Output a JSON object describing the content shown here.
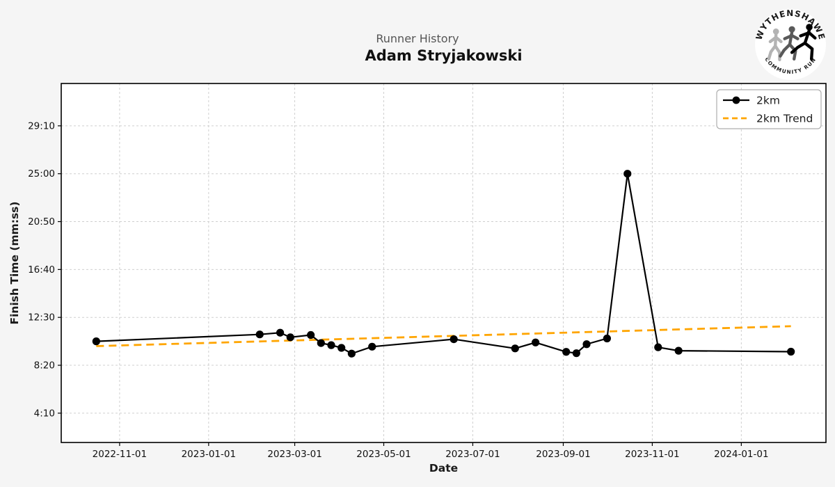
{
  "page": {
    "figure_bg": "#f5f5f5"
  },
  "header": {
    "suptitle": "Runner History",
    "title": "Adam Stryjakowski"
  },
  "logo": {
    "top_text": "WYTHENSHAWE",
    "bottom_text": "COMMUNITY RUN"
  },
  "chart_data": {
    "type": "line",
    "suptitle": "Runner History",
    "title": "Adam Stryjakowski",
    "xlabel": "Date",
    "ylabel": "Finish Time (mm:ss)",
    "x_tick_labels": [
      "2022-11-01",
      "2023-01-01",
      "2023-03-01",
      "2023-05-01",
      "2023-07-01",
      "2023-09-01",
      "2023-11-01",
      "2024-01-01"
    ],
    "y_tick_labels": [
      "4:10",
      "8:20",
      "12:30",
      "16:40",
      "20:50",
      "25:00",
      "29:10"
    ],
    "xlim": [
      "2022-09-22",
      "2024-02-28"
    ],
    "ylim_seconds": [
      97,
      1971
    ],
    "grid": true,
    "legend": {
      "position": "upper right",
      "entries": [
        "2km",
        "2km Trend"
      ]
    },
    "colors": {
      "series": "#000000",
      "trend": "#FFA500",
      "grid": "#cfcfcf",
      "plot_bg": "#ffffff",
      "figure_bg": "#f5f5f5",
      "spine": "#000000",
      "suptitle_text": "#555555",
      "text": "#1a1a1a"
    },
    "series": [
      {
        "name": "2km",
        "style": "solid",
        "marker": "circle",
        "points": [
          {
            "date": "2022-10-16",
            "time": "10:25"
          },
          {
            "date": "2023-02-05",
            "time": "11:01"
          },
          {
            "date": "2023-02-19",
            "time": "11:10"
          },
          {
            "date": "2023-02-26",
            "time": "10:46"
          },
          {
            "date": "2023-03-12",
            "time": "10:58"
          },
          {
            "date": "2023-03-19",
            "time": "10:16"
          },
          {
            "date": "2023-03-26",
            "time": "10:05"
          },
          {
            "date": "2023-04-02",
            "time": "9:51"
          },
          {
            "date": "2023-04-09",
            "time": "9:21"
          },
          {
            "date": "2023-04-23",
            "time": "9:57"
          },
          {
            "date": "2023-06-18",
            "time": "10:36"
          },
          {
            "date": "2023-07-30",
            "time": "9:48"
          },
          {
            "date": "2023-08-13",
            "time": "10:19"
          },
          {
            "date": "2023-09-03",
            "time": "9:30"
          },
          {
            "date": "2023-09-10",
            "time": "9:23"
          },
          {
            "date": "2023-09-17",
            "time": "10:10"
          },
          {
            "date": "2023-10-01",
            "time": "10:40"
          },
          {
            "date": "2023-10-15",
            "time": "25:00"
          },
          {
            "date": "2023-11-05",
            "time": "9:54"
          },
          {
            "date": "2023-11-19",
            "time": "9:36"
          },
          {
            "date": "2024-02-04",
            "time": "9:31"
          }
        ]
      },
      {
        "name": "2km Trend",
        "style": "dashed",
        "marker": "none",
        "points": [
          {
            "date": "2022-10-16",
            "time": "10:00"
          },
          {
            "date": "2024-02-04",
            "time": "11:44"
          }
        ]
      }
    ]
  }
}
